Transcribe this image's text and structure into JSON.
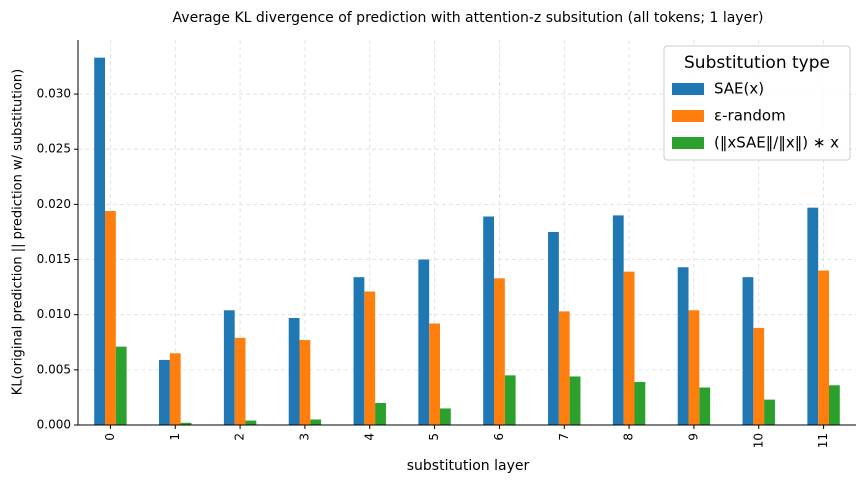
{
  "chart_data": {
    "type": "bar",
    "title": "Average KL divergence of prediction with attention-z subsitution (all tokens; 1 layer)",
    "x_label": "substitution layer",
    "y_label": "KL(original prediction || prediction w/ substitution)",
    "legend_title": "Substitution type",
    "legend_position": "upper right",
    "grid": true,
    "categories": [
      "0",
      "1",
      "2",
      "3",
      "4",
      "5",
      "6",
      "7",
      "8",
      "9",
      "10",
      "11"
    ],
    "series": [
      {
        "name": "SAE(x)",
        "color": "#1f77b4",
        "values": [
          0.0333,
          0.0059,
          0.0104,
          0.0097,
          0.0134,
          0.015,
          0.0189,
          0.0175,
          0.019,
          0.0143,
          0.0134,
          0.0197
        ]
      },
      {
        "name": "ε-random",
        "color": "#ff7f0e",
        "values": [
          0.0194,
          0.0065,
          0.0079,
          0.0077,
          0.0121,
          0.0092,
          0.0133,
          0.0103,
          0.0139,
          0.0104,
          0.0088,
          0.014
        ]
      },
      {
        "name": "(‖xSAE‖/‖x‖) ∗ x",
        "color": "#2ca02c",
        "values": [
          0.0071,
          0.0002,
          0.0004,
          0.0005,
          0.002,
          0.0015,
          0.0045,
          0.0044,
          0.0039,
          0.0034,
          0.0023,
          0.0036
        ]
      }
    ],
    "ylim": [
      0,
      0.0349
    ],
    "yticks": [
      {
        "value": 0,
        "label": "0.000"
      },
      0.005,
      {
        "value": 0.01,
        "label": "0.010"
      },
      0.015,
      {
        "value": 0.02,
        "label": "0.020"
      },
      0.025,
      {
        "value": 0.03,
        "label": "0.030"
      }
    ]
  }
}
